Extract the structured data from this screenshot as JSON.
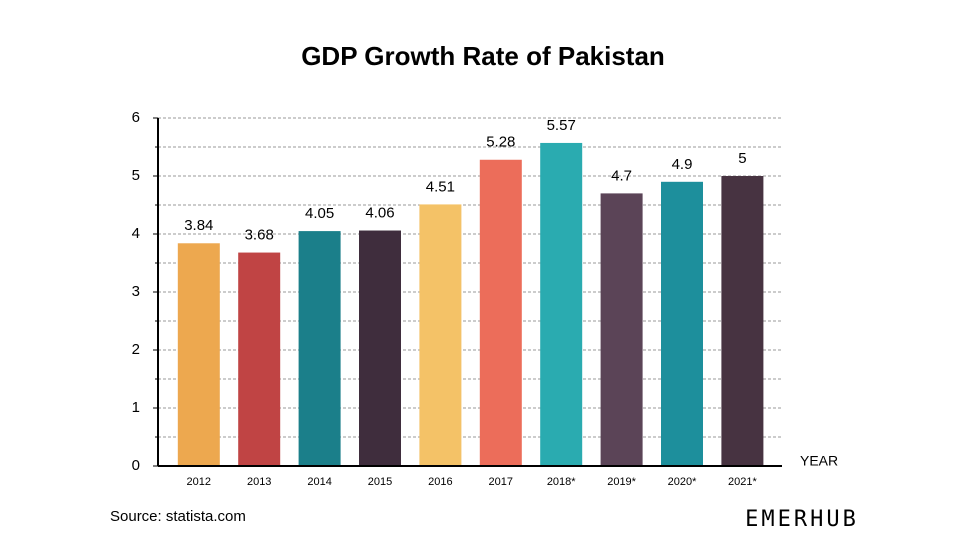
{
  "chart_data": {
    "type": "bar",
    "title": "GDP Growth Rate of Pakistan",
    "categories": [
      "2012",
      "2013",
      "2014",
      "2015",
      "2016",
      "2017",
      "2018*",
      "2019*",
      "2020*",
      "2021*"
    ],
    "values": [
      3.84,
      3.68,
      4.05,
      4.06,
      4.51,
      5.28,
      5.57,
      4.7,
      4.9,
      5
    ],
    "colors": [
      "#eda84f",
      "#c04444",
      "#1b7f8a",
      "#3f2d3d",
      "#f4c267",
      "#ec6d5a",
      "#2aabb0",
      "#5b4457",
      "#1d8f9c",
      "#473341"
    ],
    "x_label": "YEAR",
    "ylim": [
      0,
      6
    ],
    "yticks": [
      0,
      1,
      2,
      3,
      4,
      5,
      6
    ],
    "minor_yticks": [
      0.5,
      1.5,
      2.5,
      3.5,
      4.5,
      5.5
    ],
    "grid": true,
    "source": "Source: statista.com",
    "logo": "EMERHUB"
  }
}
